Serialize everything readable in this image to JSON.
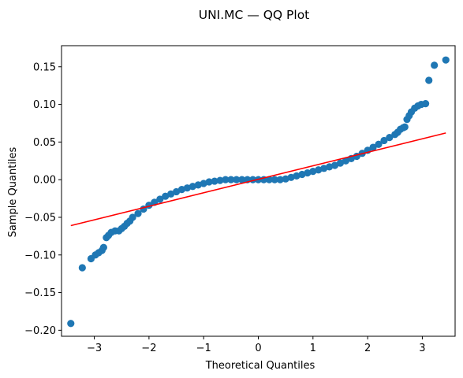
{
  "chart_data": {
    "type": "scatter",
    "title": "UNI.MC — QQ Plot",
    "xlabel": "Theoretical Quantiles",
    "ylabel": "Sample Quantiles",
    "xlim": [
      -3.6,
      3.6
    ],
    "ylim": [
      -0.208,
      0.178
    ],
    "x_ticks": [
      -3,
      -2,
      -1,
      0,
      1,
      2,
      3
    ],
    "x_tick_labels": [
      "−3",
      "−2",
      "−1",
      "0",
      "1",
      "2",
      "3"
    ],
    "y_ticks": [
      -0.2,
      -0.15,
      -0.1,
      -0.05,
      0.0,
      0.05,
      0.1,
      0.15
    ],
    "y_tick_labels": [
      "−0.20",
      "−0.15",
      "−0.10",
      "−0.05",
      "0.00",
      "0.05",
      "0.10",
      "0.15"
    ],
    "grid": false,
    "colors": {
      "points": "#1f77b4",
      "line": "#ff0000"
    },
    "reference_line": {
      "x": [
        -3.43,
        3.43
      ],
      "y": [
        -0.061,
        0.062
      ]
    },
    "samples": {
      "x": [
        -3.43,
        -3.22,
        -3.06,
        -2.98,
        -2.92,
        -2.86,
        -2.83,
        -2.78,
        -2.74,
        -2.69,
        -2.62,
        -2.55,
        -2.5,
        -2.45,
        -2.4,
        -2.35,
        -2.3,
        -2.2,
        -2.1,
        -2.0,
        -1.9,
        -1.8,
        -1.7,
        -1.6,
        -1.5,
        -1.4,
        -1.3,
        -1.2,
        -1.1,
        -1.0,
        -0.9,
        -0.8,
        -0.7,
        -0.6,
        -0.5,
        -0.4,
        -0.3,
        -0.2,
        -0.1,
        0.0,
        0.1,
        0.2,
        0.3,
        0.4,
        0.5,
        0.6,
        0.7,
        0.8,
        0.9,
        1.0,
        1.1,
        1.2,
        1.3,
        1.4,
        1.5,
        1.6,
        1.7,
        1.8,
        1.9,
        2.0,
        2.1,
        2.2,
        2.3,
        2.4,
        2.5,
        2.55,
        2.6,
        2.65,
        2.68,
        2.72,
        2.76,
        2.8,
        2.86,
        2.92,
        2.98,
        3.06,
        3.12,
        3.22,
        3.43
      ],
      "y": [
        -0.191,
        -0.117,
        -0.105,
        -0.1,
        -0.097,
        -0.094,
        -0.09,
        -0.077,
        -0.074,
        -0.07,
        -0.068,
        -0.068,
        -0.065,
        -0.062,
        -0.058,
        -0.055,
        -0.05,
        -0.045,
        -0.039,
        -0.034,
        -0.03,
        -0.026,
        -0.022,
        -0.019,
        -0.016,
        -0.013,
        -0.011,
        -0.009,
        -0.007,
        -0.005,
        -0.003,
        -0.002,
        -0.001,
        0.0,
        0.0,
        0.0,
        0.0,
        0.0,
        0.0,
        0.0,
        0.0,
        0.0,
        0.0,
        0.0,
        0.001,
        0.003,
        0.005,
        0.007,
        0.009,
        0.011,
        0.013,
        0.015,
        0.017,
        0.019,
        0.022,
        0.025,
        0.028,
        0.031,
        0.035,
        0.039,
        0.043,
        0.047,
        0.052,
        0.056,
        0.06,
        0.063,
        0.067,
        0.069,
        0.07,
        0.08,
        0.085,
        0.09,
        0.095,
        0.098,
        0.1,
        0.101,
        0.132,
        0.152,
        0.159
      ]
    }
  }
}
